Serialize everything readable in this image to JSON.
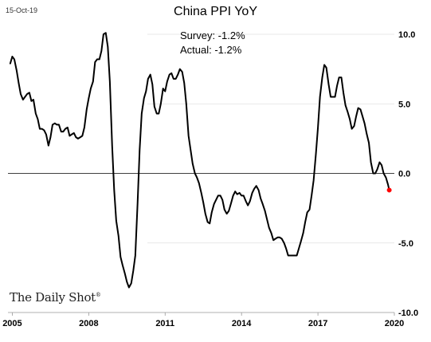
{
  "header": {
    "date": "15-Oct-19",
    "title": "China PPI YoY",
    "survey": "Survey: -1.2%",
    "actual": "Actual:  -1.2%"
  },
  "brand": {
    "name": "The Daily Shot",
    "mark": "®"
  },
  "colors": {
    "line": "#000000",
    "marker": "#ff0000",
    "zero_line": "#000000",
    "grid": "#e0e0e0"
  },
  "chart_data": {
    "type": "line",
    "title": "China PPI YoY",
    "xlabel": "",
    "ylabel": "",
    "xlim": [
      2004.83,
      2020.0
    ],
    "ylim": [
      -10,
      10
    ],
    "x_ticks": [
      2005,
      2008,
      2011,
      2014,
      2017,
      2020
    ],
    "x_tick_labels": [
      "2005",
      "2008",
      "2011",
      "2014",
      "2017",
      "2020"
    ],
    "y_ticks": [
      -10,
      -5,
      0,
      5,
      10
    ],
    "y_tick_labels": [
      "-10.0",
      "-5.0",
      "0.0",
      "5.0",
      "10.0"
    ],
    "grid": true,
    "series": [
      {
        "values": [
          [
            2004.92,
            7.9
          ],
          [
            2005.0,
            8.4
          ],
          [
            2005.08,
            8.2
          ],
          [
            2005.17,
            7.4
          ],
          [
            2005.25,
            6.5
          ],
          [
            2005.33,
            5.7
          ],
          [
            2005.42,
            5.3
          ],
          [
            2005.5,
            5.5
          ],
          [
            2005.58,
            5.7
          ],
          [
            2005.67,
            5.8
          ],
          [
            2005.75,
            5.2
          ],
          [
            2005.83,
            5.3
          ],
          [
            2005.92,
            4.3
          ],
          [
            2006.0,
            3.9
          ],
          [
            2006.08,
            3.2
          ],
          [
            2006.17,
            3.2
          ],
          [
            2006.25,
            3.1
          ],
          [
            2006.33,
            2.8
          ],
          [
            2006.42,
            2.0
          ],
          [
            2006.5,
            2.6
          ],
          [
            2006.58,
            3.5
          ],
          [
            2006.67,
            3.6
          ],
          [
            2006.75,
            3.5
          ],
          [
            2006.83,
            3.5
          ],
          [
            2006.92,
            3.0
          ],
          [
            2007.0,
            3.0
          ],
          [
            2007.08,
            3.2
          ],
          [
            2007.17,
            3.3
          ],
          [
            2007.25,
            2.7
          ],
          [
            2007.33,
            2.8
          ],
          [
            2007.42,
            2.9
          ],
          [
            2007.5,
            2.6
          ],
          [
            2007.58,
            2.5
          ],
          [
            2007.67,
            2.6
          ],
          [
            2007.75,
            2.7
          ],
          [
            2007.83,
            3.3
          ],
          [
            2007.92,
            4.6
          ],
          [
            2008.0,
            5.4
          ],
          [
            2008.08,
            6.1
          ],
          [
            2008.17,
            6.6
          ],
          [
            2008.25,
            8.0
          ],
          [
            2008.33,
            8.2
          ],
          [
            2008.42,
            8.2
          ],
          [
            2008.5,
            8.8
          ],
          [
            2008.58,
            10.0
          ],
          [
            2008.67,
            10.1
          ],
          [
            2008.75,
            9.1
          ],
          [
            2008.83,
            6.6
          ],
          [
            2008.92,
            2.0
          ],
          [
            2009.0,
            -1.2
          ],
          [
            2009.08,
            -3.4
          ],
          [
            2009.17,
            -4.5
          ],
          [
            2009.25,
            -6.0
          ],
          [
            2009.33,
            -6.6
          ],
          [
            2009.42,
            -7.2
          ],
          [
            2009.5,
            -7.8
          ],
          [
            2009.58,
            -8.2
          ],
          [
            2009.67,
            -7.9
          ],
          [
            2009.75,
            -7.0
          ],
          [
            2009.83,
            -5.9
          ],
          [
            2009.92,
            -2.1
          ],
          [
            2010.0,
            1.7
          ],
          [
            2010.08,
            4.3
          ],
          [
            2010.17,
            5.4
          ],
          [
            2010.25,
            5.9
          ],
          [
            2010.33,
            6.8
          ],
          [
            2010.42,
            7.1
          ],
          [
            2010.5,
            6.4
          ],
          [
            2010.58,
            4.8
          ],
          [
            2010.67,
            4.3
          ],
          [
            2010.75,
            4.3
          ],
          [
            2010.83,
            5.0
          ],
          [
            2010.92,
            6.1
          ],
          [
            2011.0,
            5.9
          ],
          [
            2011.08,
            6.6
          ],
          [
            2011.17,
            7.1
          ],
          [
            2011.25,
            7.2
          ],
          [
            2011.33,
            6.8
          ],
          [
            2011.42,
            6.8
          ],
          [
            2011.5,
            7.1
          ],
          [
            2011.58,
            7.5
          ],
          [
            2011.67,
            7.3
          ],
          [
            2011.75,
            6.5
          ],
          [
            2011.83,
            5.0
          ],
          [
            2011.92,
            2.7
          ],
          [
            2012.0,
            1.7
          ],
          [
            2012.08,
            0.7
          ],
          [
            2012.17,
            0.0
          ],
          [
            2012.25,
            -0.3
          ],
          [
            2012.33,
            -0.7
          ],
          [
            2012.42,
            -1.4
          ],
          [
            2012.5,
            -2.1
          ],
          [
            2012.58,
            -2.9
          ],
          [
            2012.67,
            -3.5
          ],
          [
            2012.75,
            -3.6
          ],
          [
            2012.83,
            -2.8
          ],
          [
            2012.92,
            -2.2
          ],
          [
            2013.0,
            -1.9
          ],
          [
            2013.08,
            -1.6
          ],
          [
            2013.17,
            -1.6
          ],
          [
            2013.25,
            -1.9
          ],
          [
            2013.33,
            -2.6
          ],
          [
            2013.42,
            -2.9
          ],
          [
            2013.5,
            -2.7
          ],
          [
            2013.58,
            -2.2
          ],
          [
            2013.67,
            -1.6
          ],
          [
            2013.75,
            -1.3
          ],
          [
            2013.83,
            -1.5
          ],
          [
            2013.92,
            -1.4
          ],
          [
            2014.0,
            -1.6
          ],
          [
            2014.08,
            -1.6
          ],
          [
            2014.17,
            -2.0
          ],
          [
            2014.25,
            -2.3
          ],
          [
            2014.33,
            -2.0
          ],
          [
            2014.42,
            -1.4
          ],
          [
            2014.5,
            -1.1
          ],
          [
            2014.58,
            -0.9
          ],
          [
            2014.67,
            -1.2
          ],
          [
            2014.75,
            -1.8
          ],
          [
            2014.83,
            -2.2
          ],
          [
            2014.92,
            -2.7
          ],
          [
            2015.0,
            -3.3
          ],
          [
            2015.08,
            -3.9
          ],
          [
            2015.17,
            -4.3
          ],
          [
            2015.25,
            -4.8
          ],
          [
            2015.33,
            -4.7
          ],
          [
            2015.42,
            -4.6
          ],
          [
            2015.5,
            -4.6
          ],
          [
            2015.58,
            -4.7
          ],
          [
            2015.67,
            -5.0
          ],
          [
            2015.75,
            -5.4
          ],
          [
            2015.83,
            -5.9
          ],
          [
            2015.92,
            -5.9
          ],
          [
            2016.0,
            -5.9
          ],
          [
            2016.08,
            -5.9
          ],
          [
            2016.17,
            -5.9
          ],
          [
            2016.25,
            -5.4
          ],
          [
            2016.33,
            -4.9
          ],
          [
            2016.42,
            -4.3
          ],
          [
            2016.5,
            -3.5
          ],
          [
            2016.58,
            -2.8
          ],
          [
            2016.67,
            -2.6
          ],
          [
            2016.75,
            -1.6
          ],
          [
            2016.83,
            -0.5
          ],
          [
            2016.92,
            1.4
          ],
          [
            2017.0,
            3.3
          ],
          [
            2017.08,
            5.5
          ],
          [
            2017.17,
            6.9
          ],
          [
            2017.25,
            7.8
          ],
          [
            2017.33,
            7.6
          ],
          [
            2017.42,
            6.4
          ],
          [
            2017.5,
            5.5
          ],
          [
            2017.58,
            5.5
          ],
          [
            2017.67,
            5.5
          ],
          [
            2017.75,
            6.3
          ],
          [
            2017.83,
            6.9
          ],
          [
            2017.92,
            6.9
          ],
          [
            2018.0,
            5.8
          ],
          [
            2018.08,
            4.9
          ],
          [
            2018.17,
            4.4
          ],
          [
            2018.25,
            3.9
          ],
          [
            2018.33,
            3.2
          ],
          [
            2018.42,
            3.4
          ],
          [
            2018.5,
            4.1
          ],
          [
            2018.58,
            4.7
          ],
          [
            2018.67,
            4.6
          ],
          [
            2018.75,
            4.1
          ],
          [
            2018.83,
            3.6
          ],
          [
            2018.92,
            2.8
          ],
          [
            2019.0,
            2.2
          ],
          [
            2019.08,
            0.8
          ],
          [
            2019.17,
            0.0
          ],
          [
            2019.25,
            0.0
          ],
          [
            2019.33,
            0.3
          ],
          [
            2019.42,
            0.8
          ],
          [
            2019.5,
            0.6
          ],
          [
            2019.58,
            0.0
          ],
          [
            2019.67,
            -0.3
          ],
          [
            2019.75,
            -0.8
          ],
          [
            2019.8,
            -1.2
          ]
        ]
      }
    ],
    "last_point": {
      "x": 2019.8,
      "y": -1.2
    }
  }
}
